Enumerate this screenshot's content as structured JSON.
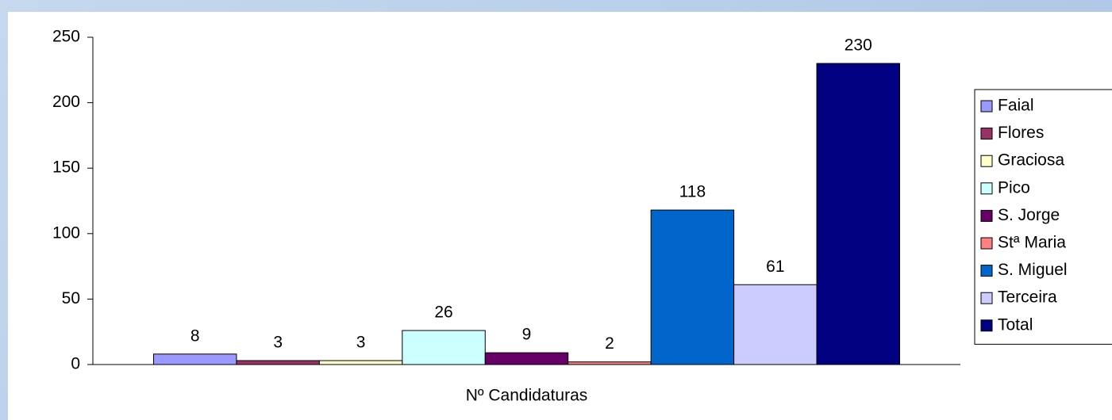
{
  "chart_data": {
    "type": "bar",
    "categories": [
      "Nº Candidaturas"
    ],
    "series": [
      {
        "name": "Faial",
        "color": "#9999ff",
        "values": [
          8
        ]
      },
      {
        "name": "Flores",
        "color": "#993366",
        "values": [
          3
        ]
      },
      {
        "name": "Graciosa",
        "color": "#ffffcc",
        "values": [
          3
        ]
      },
      {
        "name": "Pico",
        "color": "#ccffff",
        "values": [
          26
        ]
      },
      {
        "name": "S. Jorge",
        "color": "#660066",
        "values": [
          9
        ]
      },
      {
        "name": "Stª Maria",
        "color": "#ff8080",
        "values": [
          2
        ]
      },
      {
        "name": "S. Miguel",
        "color": "#0066cc",
        "values": [
          118
        ]
      },
      {
        "name": "Terceira",
        "color": "#ccccff",
        "values": [
          61
        ]
      },
      {
        "name": "Total",
        "color": "#000080",
        "values": [
          230
        ]
      }
    ],
    "ylim": [
      0,
      250
    ],
    "yticks": [
      0,
      50,
      100,
      150,
      200,
      250
    ],
    "grid": false,
    "legend": "right"
  }
}
